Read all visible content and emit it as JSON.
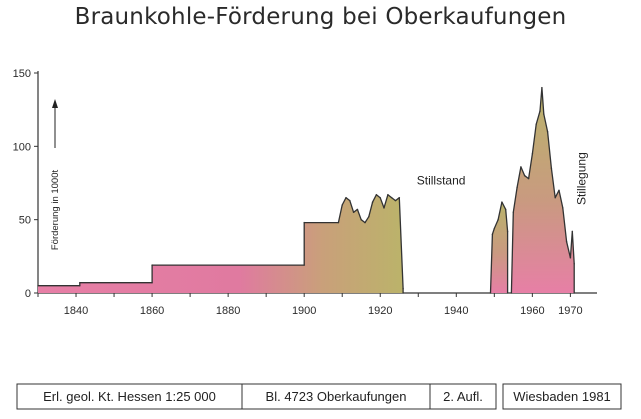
{
  "chart_data": {
    "type": "area",
    "title": "Braunkohle-Förderung bei Oberkaufungen",
    "ylabel": "Förderung in 1000t",
    "xlabel": "",
    "xlim": [
      1830,
      1977
    ],
    "ylim": [
      0,
      150
    ],
    "x_ticks": [
      1840,
      1860,
      1880,
      1900,
      1920,
      1940,
      1960,
      1970
    ],
    "y_ticks": [
      0,
      50,
      100,
      150
    ],
    "grid": false,
    "colors": {
      "fill_main": "#e77fa6",
      "fill_olive": "#b9b46a",
      "outline": "#333333"
    },
    "series": [
      {
        "points": [
          [
            1830,
            5
          ],
          [
            1841,
            5
          ],
          [
            1841,
            7
          ],
          [
            1860,
            7
          ],
          [
            1860,
            19
          ],
          [
            1900,
            19
          ],
          [
            1900,
            48
          ],
          [
            1909,
            48
          ],
          [
            1910,
            60
          ],
          [
            1911,
            65
          ],
          [
            1912,
            63
          ],
          [
            1913,
            55
          ],
          [
            1914,
            57
          ],
          [
            1915,
            50
          ],
          [
            1916,
            48
          ],
          [
            1917,
            52
          ],
          [
            1918,
            62
          ],
          [
            1919,
            67
          ],
          [
            1920,
            65
          ],
          [
            1921,
            58
          ],
          [
            1922,
            67
          ],
          [
            1923,
            65
          ],
          [
            1924,
            63
          ],
          [
            1925,
            65
          ],
          [
            1926,
            3
          ],
          [
            1926,
            0
          ]
        ]
      },
      {
        "points": [
          [
            1949,
            0
          ],
          [
            1949.5,
            40
          ],
          [
            1950,
            44
          ],
          [
            1951,
            50
          ],
          [
            1952,
            62
          ],
          [
            1953,
            57
          ],
          [
            1953.5,
            42
          ],
          [
            1953.5,
            0
          ]
        ]
      },
      {
        "points": [
          [
            1954.5,
            0
          ],
          [
            1955,
            55
          ],
          [
            1956,
            72
          ],
          [
            1957,
            86
          ],
          [
            1958,
            80
          ],
          [
            1959,
            78
          ],
          [
            1960,
            95
          ],
          [
            1961,
            115
          ],
          [
            1962,
            124
          ],
          [
            1962.5,
            140
          ],
          [
            1963,
            122
          ],
          [
            1964,
            110
          ],
          [
            1965,
            85
          ],
          [
            1966,
            65
          ],
          [
            1967,
            70
          ],
          [
            1968,
            58
          ],
          [
            1969,
            35
          ],
          [
            1970,
            24
          ],
          [
            1970.5,
            42
          ],
          [
            1971,
            20
          ],
          [
            1971,
            0
          ]
        ]
      }
    ],
    "annotations": [
      {
        "text": "Stillstand",
        "x": 1936,
        "y": 74
      },
      {
        "text": "Stillegung",
        "x": 1974,
        "y": 78,
        "rotated": true
      }
    ]
  },
  "footer": {
    "cells": [
      "Erl. geol. Kt. Hessen 1:25 000",
      "Bl. 4723 Oberkaufungen",
      "2. Aufl.",
      "Wiesbaden 1981"
    ]
  }
}
